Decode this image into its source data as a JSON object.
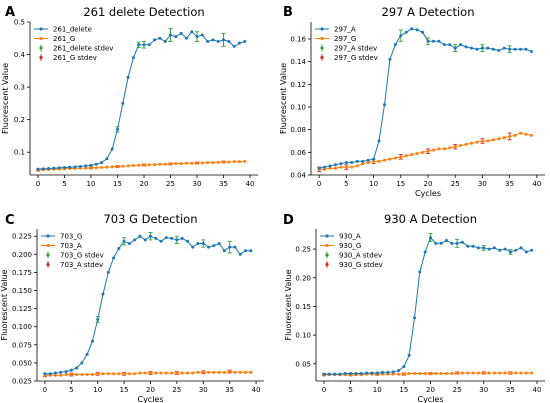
{
  "figure": {
    "colors": {
      "series_a": "#1f77b4",
      "series_b": "#ff7f0e",
      "err_a": "#2ca02c",
      "err_b": "#d62728"
    }
  },
  "chart_data": [
    {
      "type": "line",
      "panel_letter": "A",
      "title": "261 delete Detection",
      "xlabel": "",
      "ylabel": "Fluorescent Value",
      "xlim": [
        -1.5,
        41.5
      ],
      "ylim": [
        0.03,
        0.5
      ],
      "xticks": [
        "0",
        "5",
        "10",
        "15",
        "20",
        "25",
        "30",
        "35",
        "40"
      ],
      "yticks": [
        "0.1",
        "0.2",
        "0.3",
        "0.4",
        "0.5"
      ],
      "legend": [
        "261_delete",
        "261_G",
        "261_delete stdev",
        "261_G stdev"
      ],
      "legend_position": "top-left",
      "x": [
        0,
        1,
        2,
        3,
        4,
        5,
        6,
        7,
        8,
        9,
        10,
        11,
        12,
        13,
        14,
        15,
        16,
        17,
        18,
        19,
        20,
        21,
        22,
        23,
        24,
        25,
        26,
        27,
        28,
        29,
        30,
        31,
        32,
        33,
        34,
        35,
        36,
        37,
        38,
        39
      ],
      "series": [
        {
          "name": "261_delete",
          "values": [
            0.048,
            0.049,
            0.05,
            0.051,
            0.052,
            0.053,
            0.054,
            0.055,
            0.056,
            0.058,
            0.06,
            0.063,
            0.068,
            0.08,
            0.11,
            0.17,
            0.25,
            0.33,
            0.39,
            0.43,
            0.43,
            0.43,
            0.445,
            0.45,
            0.44,
            0.46,
            0.455,
            0.465,
            0.45,
            0.47,
            0.455,
            0.46,
            0.44,
            0.445,
            0.44,
            0.445,
            0.44,
            0.425,
            0.435,
            0.44
          ],
          "errors": [
            0,
            0,
            0,
            0,
            0,
            0,
            0,
            0,
            0,
            0,
            0,
            0,
            0,
            0,
            0,
            0.008,
            0,
            0,
            0,
            0.008,
            0.01,
            0,
            0,
            0,
            0,
            0.02,
            0,
            0,
            0,
            0,
            0.015,
            0,
            0,
            0,
            0,
            0.02,
            0,
            0,
            0,
            0
          ]
        },
        {
          "name": "261_G",
          "values": [
            0.045,
            0.046,
            0.047,
            0.048,
            0.048,
            0.049,
            0.05,
            0.05,
            0.051,
            0.051,
            0.052,
            0.052,
            0.053,
            0.054,
            0.055,
            0.056,
            0.057,
            0.058,
            0.059,
            0.06,
            0.061,
            0.061,
            0.062,
            0.063,
            0.063,
            0.064,
            0.065,
            0.065,
            0.066,
            0.066,
            0.067,
            0.067,
            0.068,
            0.068,
            0.069,
            0.07,
            0.07,
            0.071,
            0.071,
            0.072
          ],
          "errors": [
            0.003,
            0,
            0,
            0,
            0,
            0,
            0,
            0,
            0,
            0,
            0.003,
            0,
            0,
            0,
            0,
            0.003,
            0,
            0,
            0,
            0,
            0.003,
            0,
            0,
            0,
            0,
            0.003,
            0,
            0,
            0,
            0,
            0.003,
            0,
            0,
            0,
            0,
            0.003,
            0,
            0,
            0,
            0
          ]
        }
      ]
    },
    {
      "type": "line",
      "panel_letter": "B",
      "title": "297 A Detection",
      "xlabel": "Cycles",
      "ylabel": "Fluorescent Value",
      "xlim": [
        -1.5,
        41.5
      ],
      "ylim": [
        0.04,
        0.175
      ],
      "xticks": [
        "0",
        "5",
        "10",
        "15",
        "20",
        "25",
        "30",
        "35",
        "40"
      ],
      "yticks": [
        "0.04",
        "0.06",
        "0.08",
        "0.10",
        "0.12",
        "0.14",
        "0.16"
      ],
      "legend": [
        "297_A",
        "297_G",
        "297_A stdev",
        "297_G stdev"
      ],
      "legend_position": "top-left",
      "x": [
        0,
        1,
        2,
        3,
        4,
        5,
        6,
        7,
        8,
        9,
        10,
        11,
        12,
        13,
        14,
        15,
        16,
        17,
        18,
        19,
        20,
        21,
        22,
        23,
        24,
        25,
        26,
        27,
        28,
        29,
        30,
        31,
        32,
        33,
        34,
        35,
        36,
        37,
        38,
        39
      ],
      "series": [
        {
          "name": "297_A",
          "values": [
            0.046,
            0.047,
            0.048,
            0.049,
            0.05,
            0.051,
            0.051,
            0.052,
            0.052,
            0.053,
            0.054,
            0.07,
            0.102,
            0.142,
            0.155,
            0.163,
            0.166,
            0.169,
            0.168,
            0.166,
            0.158,
            0.158,
            0.158,
            0.155,
            0.155,
            0.152,
            0.155,
            0.153,
            0.152,
            0.151,
            0.152,
            0.152,
            0.151,
            0.15,
            0.152,
            0.151,
            0.151,
            0.151,
            0.151,
            0.149
          ],
          "errors": [
            0,
            0,
            0,
            0,
            0,
            0,
            0,
            0,
            0,
            0,
            0,
            0,
            0,
            0,
            0,
            0.005,
            0,
            0,
            0,
            0,
            0.003,
            0,
            0,
            0,
            0,
            0.003,
            0,
            0,
            0,
            0,
            0.003,
            0,
            0,
            0,
            0,
            0.003,
            0,
            0,
            0,
            0
          ]
        },
        {
          "name": "297_G",
          "values": [
            0.045,
            0.045,
            0.046,
            0.046,
            0.047,
            0.047,
            0.047,
            0.048,
            0.05,
            0.051,
            0.052,
            0.052,
            0.053,
            0.054,
            0.055,
            0.056,
            0.057,
            0.058,
            0.059,
            0.06,
            0.061,
            0.062,
            0.063,
            0.063,
            0.064,
            0.065,
            0.066,
            0.067,
            0.068,
            0.069,
            0.07,
            0.07,
            0.071,
            0.072,
            0.073,
            0.074,
            0.075,
            0.077,
            0.076,
            0.075
          ],
          "errors": [
            0.002,
            0,
            0,
            0,
            0,
            0.002,
            0,
            0,
            0,
            0,
            0.002,
            0,
            0,
            0,
            0,
            0.002,
            0,
            0,
            0,
            0,
            0.002,
            0,
            0,
            0,
            0,
            0.002,
            0,
            0,
            0,
            0,
            0.002,
            0,
            0,
            0,
            0,
            0.003,
            0,
            0,
            0,
            0
          ]
        }
      ]
    },
    {
      "type": "line",
      "panel_letter": "C",
      "title": "703 G Detection",
      "xlabel": "Cycles",
      "ylabel": "Fluorescent Value",
      "xlim": [
        -1.5,
        41.5
      ],
      "ylim": [
        0.025,
        0.235
      ],
      "xticks": [
        "0",
        "5",
        "10",
        "15",
        "20",
        "25",
        "30",
        "35",
        "40"
      ],
      "yticks": [
        "0.025",
        "0.050",
        "0.075",
        "0.100",
        "0.125",
        "0.150",
        "0.175",
        "0.200",
        "0.225"
      ],
      "legend": [
        "703_G",
        "703_A",
        "703_G stdev",
        "703_A stdev"
      ],
      "legend_position": "top-left",
      "x": [
        0,
        1,
        2,
        3,
        4,
        5,
        6,
        7,
        8,
        9,
        10,
        11,
        12,
        13,
        14,
        15,
        16,
        17,
        18,
        19,
        20,
        21,
        22,
        23,
        24,
        25,
        26,
        27,
        28,
        29,
        30,
        31,
        32,
        33,
        34,
        35,
        36,
        37,
        38,
        39
      ],
      "series": [
        {
          "name": "703_G",
          "values": [
            0.035,
            0.035,
            0.036,
            0.037,
            0.038,
            0.04,
            0.043,
            0.05,
            0.062,
            0.08,
            0.11,
            0.145,
            0.175,
            0.195,
            0.208,
            0.218,
            0.215,
            0.22,
            0.225,
            0.22,
            0.225,
            0.222,
            0.218,
            0.223,
            0.222,
            0.22,
            0.222,
            0.218,
            0.21,
            0.215,
            0.215,
            0.21,
            0.212,
            0.215,
            0.205,
            0.21,
            0.21,
            0.2,
            0.205,
            0.205
          ],
          "errors": [
            0,
            0,
            0,
            0,
            0,
            0,
            0,
            0,
            0,
            0,
            0.004,
            0,
            0,
            0,
            0,
            0.005,
            0,
            0,
            0,
            0,
            0.005,
            0,
            0,
            0,
            0,
            0.005,
            0,
            0,
            0,
            0,
            0.005,
            0,
            0,
            0,
            0,
            0.008,
            0,
            0,
            0,
            0
          ]
        },
        {
          "name": "703_A",
          "values": [
            0.033,
            0.033,
            0.033,
            0.033,
            0.034,
            0.034,
            0.034,
            0.034,
            0.034,
            0.034,
            0.035,
            0.035,
            0.035,
            0.035,
            0.035,
            0.035,
            0.035,
            0.035,
            0.036,
            0.036,
            0.036,
            0.036,
            0.036,
            0.036,
            0.036,
            0.036,
            0.036,
            0.036,
            0.036,
            0.037,
            0.037,
            0.037,
            0.037,
            0.037,
            0.037,
            0.038,
            0.037,
            0.037,
            0.037,
            0.037
          ],
          "errors": [
            0.002,
            0,
            0,
            0,
            0,
            0.002,
            0,
            0,
            0,
            0,
            0.002,
            0,
            0,
            0,
            0,
            0.002,
            0,
            0,
            0,
            0,
            0.002,
            0,
            0,
            0,
            0,
            0.002,
            0,
            0,
            0,
            0,
            0.002,
            0,
            0,
            0,
            0,
            0.002,
            0,
            0,
            0,
            0
          ]
        }
      ]
    },
    {
      "type": "line",
      "panel_letter": "D",
      "title": "930 A Detection",
      "xlabel": "Cycles",
      "ylabel": "Fluorescent Value",
      "xlim": [
        -1.5,
        41.5
      ],
      "ylim": [
        0.02,
        0.285
      ],
      "xticks": [
        "0",
        "5",
        "10",
        "15",
        "20",
        "25",
        "30",
        "35",
        "40"
      ],
      "yticks": [
        "0.05",
        "0.10",
        "0.15",
        "0.20",
        "0.25"
      ],
      "legend": [
        "930_A",
        "930_G",
        "930_A stdev",
        "930_G stdev"
      ],
      "legend_position": "top-left",
      "x": [
        0,
        1,
        2,
        3,
        4,
        5,
        6,
        7,
        8,
        9,
        10,
        11,
        12,
        13,
        14,
        15,
        16,
        17,
        18,
        19,
        20,
        21,
        22,
        23,
        24,
        25,
        26,
        27,
        28,
        29,
        30,
        31,
        32,
        33,
        34,
        35,
        36,
        37,
        38,
        39
      ],
      "series": [
        {
          "name": "930_A",
          "values": [
            0.032,
            0.032,
            0.032,
            0.032,
            0.033,
            0.033,
            0.033,
            0.033,
            0.034,
            0.034,
            0.034,
            0.035,
            0.035,
            0.036,
            0.038,
            0.045,
            0.065,
            0.13,
            0.21,
            0.245,
            0.27,
            0.26,
            0.26,
            0.265,
            0.26,
            0.26,
            0.262,
            0.255,
            0.255,
            0.252,
            0.252,
            0.25,
            0.252,
            0.248,
            0.25,
            0.245,
            0.248,
            0.252,
            0.245,
            0.248
          ],
          "errors": [
            0,
            0,
            0,
            0,
            0,
            0,
            0,
            0,
            0,
            0,
            0,
            0,
            0,
            0,
            0,
            0,
            0,
            0,
            0,
            0,
            0.007,
            0,
            0,
            0,
            0,
            0.007,
            0,
            0,
            0,
            0,
            0.004,
            0,
            0,
            0,
            0,
            0.004,
            0,
            0,
            0,
            0
          ]
        },
        {
          "name": "930_G",
          "values": [
            0.031,
            0.031,
            0.031,
            0.031,
            0.031,
            0.031,
            0.031,
            0.031,
            0.032,
            0.032,
            0.032,
            0.032,
            0.032,
            0.032,
            0.032,
            0.032,
            0.033,
            0.033,
            0.033,
            0.033,
            0.033,
            0.033,
            0.033,
            0.033,
            0.033,
            0.034,
            0.034,
            0.034,
            0.034,
            0.034,
            0.034,
            0.034,
            0.034,
            0.034,
            0.034,
            0.034,
            0.034,
            0.034,
            0.034,
            0.034
          ],
          "errors": [
            0.002,
            0,
            0,
            0,
            0,
            0.002,
            0,
            0,
            0,
            0,
            0.002,
            0,
            0,
            0,
            0,
            0.002,
            0,
            0,
            0,
            0,
            0.002,
            0,
            0,
            0,
            0,
            0.002,
            0,
            0,
            0,
            0,
            0.002,
            0,
            0,
            0,
            0,
            0.002,
            0,
            0,
            0,
            0
          ]
        }
      ]
    }
  ]
}
